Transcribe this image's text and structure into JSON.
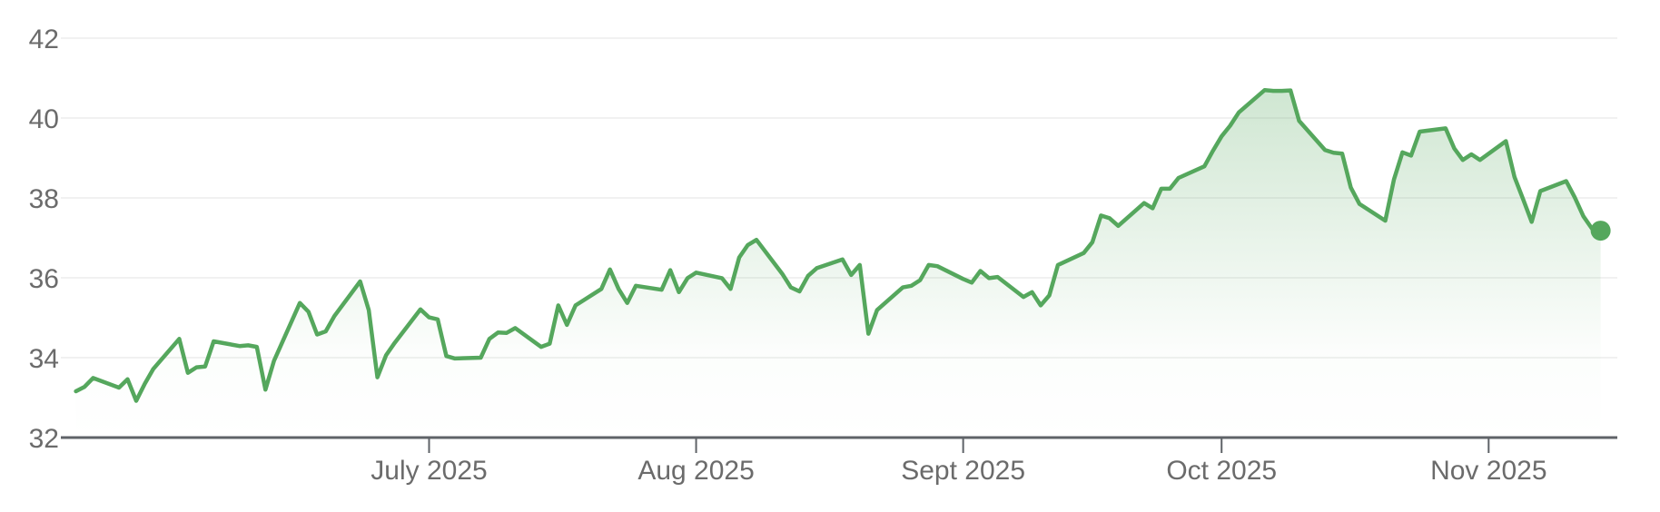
{
  "chart_data": {
    "type": "area",
    "title": "",
    "xlabel": "",
    "ylabel": "",
    "ylim": [
      32,
      42
    ],
    "yticks": [
      "32",
      "34",
      "36",
      "38",
      "40",
      "42"
    ],
    "xticks": [
      {
        "date": "2025-07-01",
        "label": "July 2025"
      },
      {
        "date": "2025-08-01",
        "label": "Aug 2025"
      },
      {
        "date": "2025-09-01",
        "label": "Sept 2025"
      },
      {
        "date": "2025-10-01",
        "label": "Oct 2025"
      },
      {
        "date": "2025-11-01",
        "label": "Nov 2025"
      }
    ],
    "xlim": [
      "2025-05-20",
      "2025-11-15"
    ],
    "grid": true,
    "line_color": "#55a75d",
    "end_marker": true,
    "x": [
      "2025-05-21",
      "2025-05-22",
      "2025-05-23",
      "2025-05-26",
      "2025-05-27",
      "2025-05-28",
      "2025-05-29",
      "2025-05-30",
      "2025-06-02",
      "2025-06-03",
      "2025-06-04",
      "2025-06-05",
      "2025-06-06",
      "2025-06-09",
      "2025-06-10",
      "2025-06-11",
      "2025-06-12",
      "2025-06-13",
      "2025-06-16",
      "2025-06-17",
      "2025-06-18",
      "2025-06-19",
      "2025-06-20",
      "2025-06-23",
      "2025-06-24",
      "2025-06-25",
      "2025-06-26",
      "2025-06-27",
      "2025-06-30",
      "2025-07-01",
      "2025-07-02",
      "2025-07-03",
      "2025-07-04",
      "2025-07-07",
      "2025-07-08",
      "2025-07-09",
      "2025-07-10",
      "2025-07-11",
      "2025-07-14",
      "2025-07-15",
      "2025-07-16",
      "2025-07-17",
      "2025-07-18",
      "2025-07-21",
      "2025-07-22",
      "2025-07-23",
      "2025-07-24",
      "2025-07-25",
      "2025-07-28",
      "2025-07-29",
      "2025-07-30",
      "2025-07-31",
      "2025-08-01",
      "2025-08-04",
      "2025-08-05",
      "2025-08-06",
      "2025-08-07",
      "2025-08-08",
      "2025-08-11",
      "2025-08-12",
      "2025-08-13",
      "2025-08-14",
      "2025-08-15",
      "2025-08-18",
      "2025-08-19",
      "2025-08-20",
      "2025-08-21",
      "2025-08-22",
      "2025-08-25",
      "2025-08-26",
      "2025-08-27",
      "2025-08-28",
      "2025-08-29",
      "2025-09-01",
      "2025-09-02",
      "2025-09-03",
      "2025-09-04",
      "2025-09-05",
      "2025-09-08",
      "2025-09-09",
      "2025-09-10",
      "2025-09-11",
      "2025-09-12",
      "2025-09-15",
      "2025-09-16",
      "2025-09-17",
      "2025-09-18",
      "2025-09-19",
      "2025-09-22",
      "2025-09-23",
      "2025-09-24",
      "2025-09-25",
      "2025-09-26",
      "2025-09-29",
      "2025-09-30",
      "2025-10-01",
      "2025-10-02",
      "2025-10-03",
      "2025-10-06",
      "2025-10-07",
      "2025-10-08",
      "2025-10-09",
      "2025-10-10",
      "2025-10-13",
      "2025-10-14",
      "2025-10-15",
      "2025-10-16",
      "2025-10-17",
      "2025-10-20",
      "2025-10-21",
      "2025-10-22",
      "2025-10-23",
      "2025-10-24",
      "2025-10-27",
      "2025-10-28",
      "2025-10-29",
      "2025-10-30",
      "2025-10-31",
      "2025-11-03",
      "2025-11-04",
      "2025-11-05",
      "2025-11-06",
      "2025-11-07",
      "2025-11-10",
      "2025-11-11",
      "2025-11-12",
      "2025-11-13",
      "2025-11-14"
    ],
    "y": [
      33.16,
      33.27,
      33.49,
      33.25,
      33.46,
      32.92,
      33.35,
      33.72,
      34.47,
      33.62,
      33.76,
      33.78,
      34.41,
      34.29,
      34.31,
      34.27,
      33.2,
      33.92,
      35.37,
      35.15,
      34.58,
      34.66,
      35.04,
      35.91,
      35.19,
      33.51,
      34.06,
      34.37,
      35.21,
      35.01,
      34.96,
      34.04,
      33.98,
      34.0,
      34.47,
      34.63,
      34.62,
      34.74,
      34.27,
      34.35,
      35.31,
      34.82,
      35.31,
      35.72,
      36.21,
      35.72,
      35.37,
      35.8,
      35.7,
      36.19,
      35.64,
      35.99,
      36.13,
      35.99,
      35.72,
      36.51,
      36.82,
      36.95,
      36.1,
      35.76,
      35.66,
      36.05,
      36.24,
      36.46,
      36.07,
      36.32,
      34.6,
      35.19,
      35.76,
      35.8,
      35.94,
      36.32,
      36.29,
      35.97,
      35.88,
      36.17,
      35.99,
      36.02,
      35.52,
      35.64,
      35.31,
      35.56,
      36.32,
      36.62,
      36.89,
      37.56,
      37.49,
      37.3,
      37.87,
      37.74,
      38.23,
      38.23,
      38.5,
      38.79,
      39.18,
      39.54,
      39.81,
      40.14,
      40.7,
      40.68,
      40.68,
      40.69,
      39.93,
      39.2,
      39.13,
      39.11,
      38.26,
      37.85,
      37.43,
      38.46,
      39.14,
      39.06,
      39.66,
      39.74,
      39.24,
      38.95,
      39.09,
      38.95,
      39.42,
      38.52,
      37.97,
      37.4,
      38.17,
      38.42,
      38.01,
      37.54,
      37.23,
      37.18
    ]
  }
}
